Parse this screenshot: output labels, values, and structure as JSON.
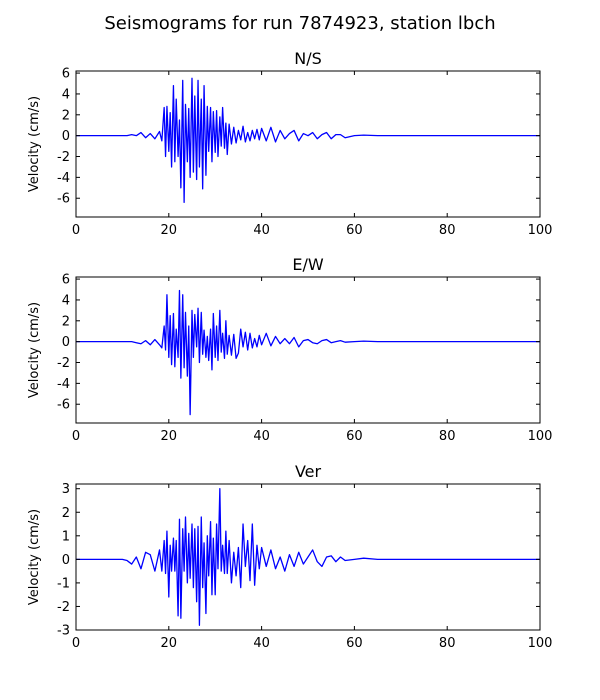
{
  "figure": {
    "title": "Seismograms for run 7874923, station lbch"
  },
  "chart_data": [
    {
      "type": "line",
      "title": "N/S",
      "xlabel": "",
      "ylabel": "Velocity (cm/s)",
      "xlim": [
        0,
        100
      ],
      "ylim": [
        -7.8,
        6.2
      ],
      "xticks": [
        0,
        20,
        40,
        60,
        80,
        100
      ],
      "yticks": [
        -6,
        -4,
        -2,
        0,
        2,
        4,
        6
      ],
      "color": "#0000ff",
      "x": [
        0,
        10,
        11,
        12,
        13,
        14,
        15,
        16,
        17,
        18,
        18.5,
        19,
        19.3,
        19.6,
        20,
        20.3,
        20.6,
        21,
        21.3,
        21.6,
        22,
        22.3,
        22.6,
        23,
        23.3,
        23.6,
        24,
        24.3,
        24.6,
        25,
        25.3,
        25.6,
        26,
        26.3,
        26.6,
        27,
        27.3,
        27.6,
        28,
        28.3,
        28.6,
        29,
        29.3,
        29.6,
        30,
        30.3,
        30.6,
        31,
        31.3,
        31.6,
        32,
        32.3,
        32.6,
        33,
        33.5,
        34,
        34.5,
        35,
        35.5,
        36,
        36.5,
        37,
        37.5,
        38,
        38.5,
        39,
        39.5,
        40,
        41,
        42,
        43,
        44,
        45,
        46,
        47,
        48,
        49,
        50,
        51,
        52,
        53,
        54,
        55,
        56,
        57,
        58,
        60,
        62,
        65,
        100
      ],
      "values": [
        0,
        0,
        0,
        0.1,
        0,
        0.3,
        -0.2,
        0.2,
        -0.3,
        0.4,
        -0.5,
        2.7,
        -2,
        2.8,
        -1.5,
        2.2,
        -3,
        4.8,
        -2.5,
        3.5,
        -2,
        1.5,
        -5,
        5.3,
        -6.4,
        3,
        -2.5,
        2.6,
        -4,
        5.5,
        -3.5,
        3.8,
        -4.2,
        5.3,
        -3,
        3.5,
        -5.1,
        4.8,
        -3.8,
        2.8,
        -1.5,
        2.7,
        -2.5,
        2.3,
        -1.6,
        2.4,
        -2,
        1.8,
        -1,
        2.7,
        -1.2,
        1.2,
        -1.8,
        1.1,
        -0.8,
        0.8,
        -0.7,
        0.5,
        -0.4,
        0.9,
        -0.6,
        0.3,
        -0.5,
        0.5,
        -0.3,
        0.6,
        -0.4,
        0.7,
        -0.5,
        0.8,
        -0.6,
        0.5,
        -0.3,
        0.2,
        0.5,
        -0.5,
        0.2,
        0,
        0.3,
        -0.3,
        0.1,
        0.3,
        -0.3,
        0.1,
        0.1,
        -0.2,
        0,
        0.05,
        0,
        0
      ]
    },
    {
      "type": "line",
      "title": "E/W",
      "xlabel": "",
      "ylabel": "Velocity (cm/s)",
      "xlim": [
        0,
        100
      ],
      "ylim": [
        -7.8,
        6.2
      ],
      "xticks": [
        0,
        20,
        40,
        60,
        80,
        100
      ],
      "yticks": [
        -6,
        -4,
        -2,
        0,
        2,
        4,
        6
      ],
      "color": "#0000ff",
      "x": [
        0,
        10,
        11,
        12,
        13,
        14,
        15,
        16,
        17,
        18,
        18.5,
        19,
        19.3,
        19.6,
        20,
        20.3,
        20.6,
        21,
        21.3,
        21.6,
        22,
        22.3,
        22.6,
        23,
        23.3,
        23.6,
        24,
        24.3,
        24.6,
        25,
        25.3,
        25.6,
        26,
        26.3,
        26.6,
        27,
        27.3,
        27.6,
        28,
        28.3,
        28.6,
        29,
        29.3,
        29.6,
        30,
        30.3,
        30.6,
        31,
        31.3,
        31.6,
        32,
        32.3,
        32.6,
        33,
        33.5,
        34,
        34.5,
        35,
        35.5,
        36,
        36.5,
        37,
        37.5,
        38,
        38.5,
        39,
        39.5,
        40,
        41,
        42,
        43,
        44,
        45,
        46,
        47,
        48,
        49,
        50,
        51,
        52,
        53,
        54,
        55,
        56,
        57,
        58,
        60,
        62,
        65,
        100
      ],
      "values": [
        0,
        0,
        0,
        0,
        -0.1,
        -0.2,
        0.1,
        -0.3,
        0.2,
        -0.3,
        -0.6,
        1.5,
        -0.8,
        4.5,
        -1.5,
        2.5,
        -2.2,
        2.7,
        -2.4,
        1.2,
        -1.5,
        4.9,
        -3.5,
        4.5,
        -2.5,
        2.8,
        -3.3,
        1.5,
        -7,
        3,
        -1.5,
        2.6,
        -0.5,
        3.2,
        -2,
        2.8,
        -1.2,
        1.1,
        -1.5,
        0.5,
        -1.8,
        1.2,
        -2.7,
        2.7,
        -1.5,
        1.5,
        -1.8,
        3,
        -1,
        0.8,
        -1.6,
        2,
        -1.2,
        0.6,
        -1.3,
        0.7,
        -1.6,
        -1.1,
        1.2,
        -0.5,
        0.9,
        -0.8,
        0.8,
        -0.6,
        0.3,
        -0.5,
        0.6,
        -0.3,
        0.8,
        -0.4,
        0.5,
        -0.2,
        0.3,
        -0.2,
        0.4,
        -0.5,
        0.1,
        0.2,
        -0.1,
        -0.2,
        0.1,
        0.2,
        -0.1,
        0,
        0.1,
        -0.05,
        0,
        0.05,
        0,
        0
      ]
    },
    {
      "type": "line",
      "title": "Ver",
      "xlabel": "",
      "ylabel": "Velocity (cm/s)",
      "xlim": [
        0,
        100
      ],
      "ylim": [
        -3,
        3.2
      ],
      "xticks": [
        0,
        20,
        40,
        60,
        80,
        100
      ],
      "yticks": [
        -3,
        -2,
        -1,
        0,
        1,
        2,
        3
      ],
      "color": "#0000ff",
      "x": [
        0,
        10,
        11,
        12,
        13,
        14,
        15,
        16,
        17,
        18,
        18.5,
        19,
        19.3,
        19.6,
        20,
        20.3,
        20.6,
        21,
        21.3,
        21.6,
        22,
        22.3,
        22.6,
        23,
        23.3,
        23.6,
        24,
        24.3,
        24.6,
        25,
        25.3,
        25.6,
        26,
        26.3,
        26.6,
        27,
        27.3,
        27.6,
        28,
        28.3,
        28.6,
        29,
        29.3,
        29.6,
        30,
        30.3,
        30.6,
        31,
        31.3,
        31.6,
        32,
        32.3,
        32.6,
        33,
        33.5,
        34,
        34.5,
        35,
        35.5,
        36,
        36.5,
        37,
        37.5,
        38,
        38.5,
        39,
        39.5,
        40,
        41,
        42,
        43,
        44,
        45,
        46,
        47,
        48,
        49,
        50,
        51,
        52,
        53,
        54,
        55,
        56,
        57,
        58,
        60,
        62,
        65,
        100
      ],
      "values": [
        0,
        0,
        -0.05,
        -0.2,
        0.1,
        -0.4,
        0.3,
        0.2,
        -0.5,
        0.4,
        -0.5,
        0.8,
        -0.6,
        1.2,
        -1.6,
        0.6,
        -0.5,
        0.9,
        -0.5,
        0.8,
        -2.4,
        1.7,
        -2.5,
        1.3,
        -0.5,
        1.8,
        -1,
        1.1,
        -0.8,
        1.5,
        -1.2,
        1.3,
        -1.8,
        1.4,
        -2.8,
        1.8,
        -1.2,
        0.7,
        -2.3,
        1,
        -0.7,
        1.6,
        -1.5,
        0.9,
        -1.5,
        1.5,
        -0.4,
        3,
        -0.5,
        0.6,
        -0.6,
        1.2,
        -0.6,
        0.8,
        -1,
        0.3,
        -0.7,
        0.5,
        -1.2,
        1.5,
        -0.3,
        0.8,
        -0.9,
        1.5,
        -1.1,
        0.6,
        -0.4,
        0.5,
        -0.3,
        0.4,
        -0.4,
        0.1,
        -0.5,
        0.2,
        -0.3,
        0.3,
        -0.2,
        0.1,
        0.4,
        -0.1,
        -0.3,
        0.1,
        0.15,
        -0.1,
        0.1,
        -0.05,
        0,
        0.05,
        0,
        0
      ]
    }
  ]
}
